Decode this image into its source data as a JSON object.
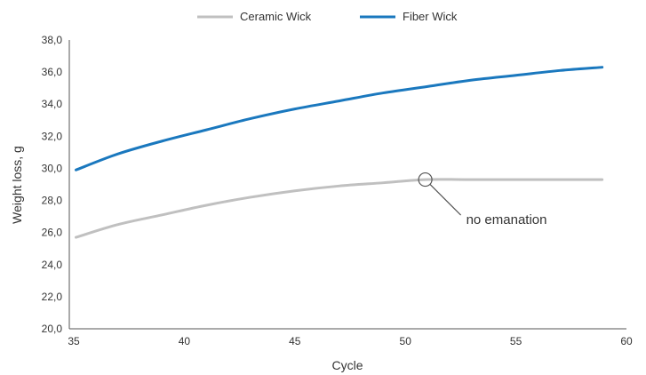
{
  "chart_data": {
    "type": "line",
    "title": "",
    "xlabel": "Cycle",
    "ylabel": "Weight loss, g",
    "xlim": [
      35,
      60
    ],
    "ylim": [
      20,
      38
    ],
    "x_ticks": [
      35,
      40,
      45,
      50,
      55,
      60
    ],
    "y_ticks": [
      20,
      22,
      24,
      26,
      28,
      30,
      32,
      34,
      36,
      38
    ],
    "x_tick_labels": [
      "35",
      "40",
      "45",
      "50",
      "55",
      "60"
    ],
    "y_tick_labels": [
      "20,0",
      "22,0",
      "24,0",
      "26,0",
      "28,0",
      "30,0",
      "32,0",
      "34,0",
      "36,0",
      "38,0"
    ],
    "grid": false,
    "legend_position": "top-center",
    "series": [
      {
        "name": "Ceramic Wick",
        "color": "#c0c0c0",
        "x": [
          35.1,
          37,
          39,
          41,
          43,
          45,
          47,
          49,
          50.9,
          53,
          55,
          57,
          58.9
        ],
        "y": [
          25.7,
          26.5,
          27.1,
          27.7,
          28.2,
          28.6,
          28.9,
          29.1,
          29.3,
          29.3,
          29.3,
          29.3,
          29.3
        ]
      },
      {
        "name": "Fiber Wick",
        "color": "#1a78be",
        "x": [
          35.1,
          37,
          39,
          41,
          43,
          45,
          47,
          49,
          51,
          53,
          55,
          57,
          58.9
        ],
        "y": [
          29.9,
          30.9,
          31.7,
          32.4,
          33.1,
          33.7,
          34.2,
          34.7,
          35.1,
          35.5,
          35.8,
          36.1,
          36.3
        ]
      }
    ],
    "annotations": [
      {
        "text": "no emanation",
        "x": 50.9,
        "y": 29.3,
        "marker": "circle"
      }
    ]
  }
}
